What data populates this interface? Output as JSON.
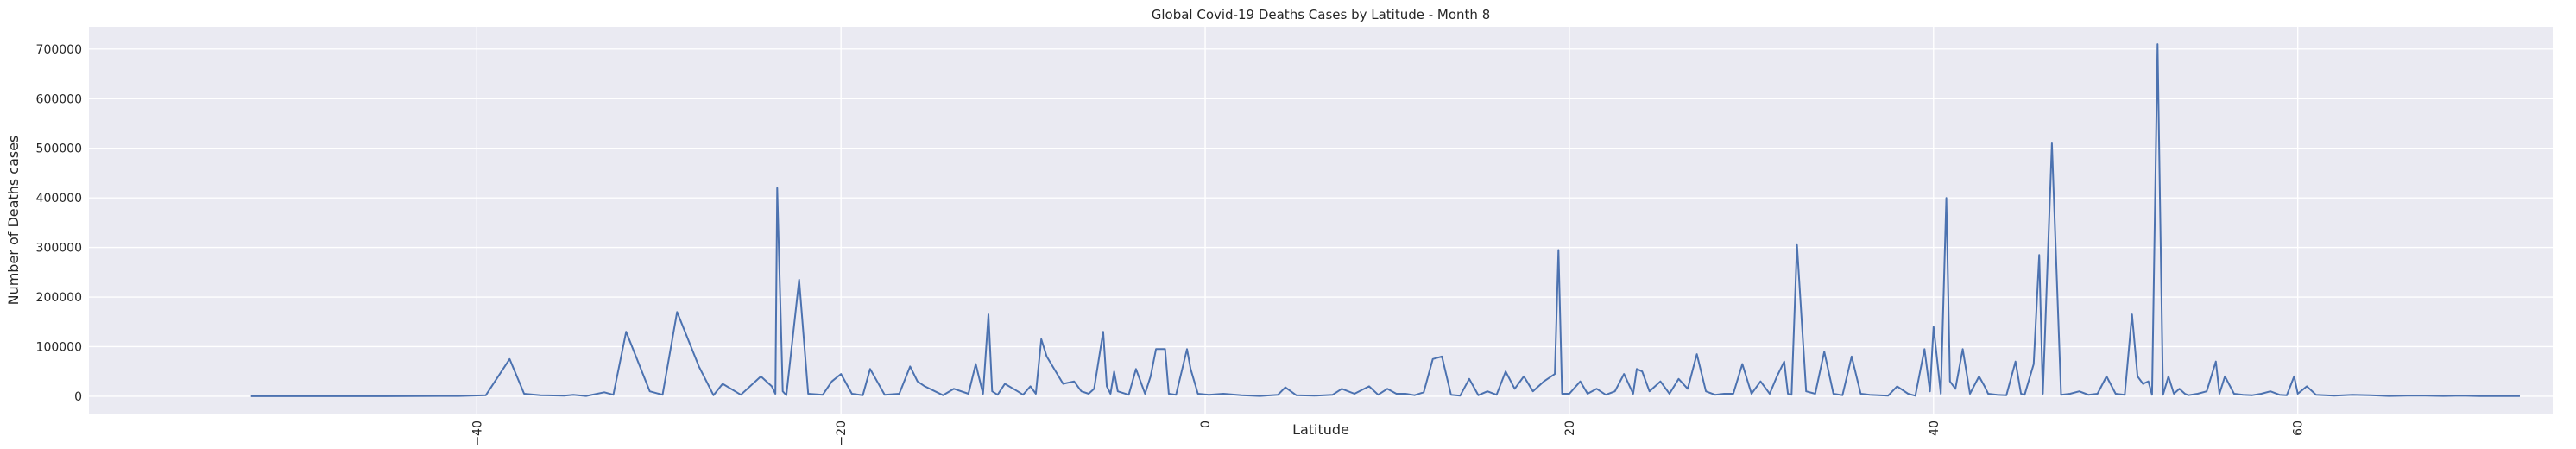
{
  "chart_data": {
    "type": "line",
    "title": "Global Covid-19 Deaths Cases by Latitude - Month 8",
    "xlabel": "Latitude",
    "ylabel": "Number of Deaths cases",
    "xlim": [
      -61.3,
      74
    ],
    "ylim": [
      -35000,
      745000
    ],
    "x_ticks": [
      -40,
      -20,
      0,
      20,
      40,
      60
    ],
    "y_ticks": [
      0,
      100000,
      200000,
      300000,
      400000,
      500000,
      600000,
      700000
    ],
    "grid": true,
    "series": [
      {
        "color": "#4c72b0",
        "x": [
          -52.4,
          -49,
          -45,
          -41,
          -39.5,
          -38.2,
          -37.4,
          -36.5,
          -35.2,
          -34.7,
          -34.0,
          -33.0,
          -32.5,
          -31.8,
          -30.5,
          -29.8,
          -29.0,
          -27.8,
          -27.0,
          -26.5,
          -25.5,
          -24.4,
          -23.8,
          -23.6,
          -23.5,
          -23.2,
          -23.0,
          -22.3,
          -21.8,
          -21.0,
          -20.5,
          -20.0,
          -19.4,
          -18.8,
          -18.4,
          -17.6,
          -16.8,
          -16.2,
          -15.8,
          -15.4,
          -14.4,
          -13.8,
          -13.0,
          -12.6,
          -12.2,
          -11.9,
          -11.7,
          -11.4,
          -11.0,
          -10.3,
          -10.0,
          -9.6,
          -9.3,
          -9.0,
          -8.7,
          -7.8,
          -7.2,
          -6.8,
          -6.4,
          -6.1,
          -5.6,
          -5.4,
          -5.2,
          -5.0,
          -4.8,
          -4.2,
          -3.8,
          -3.3,
          -3.0,
          -2.7,
          -2.2,
          -2.0,
          -1.6,
          -1.0,
          -0.8,
          -0.4,
          0.2,
          1.0,
          2.0,
          3.0,
          4.0,
          4.4,
          5.0,
          6.0,
          7.0,
          7.5,
          8.2,
          9.0,
          9.5,
          10.0,
          10.5,
          11.0,
          11.5,
          12.0,
          12.5,
          13.0,
          13.5,
          14.0,
          14.5,
          15.0,
          15.5,
          16.0,
          16.5,
          17.0,
          17.5,
          18.0,
          18.6,
          19.2,
          19.4,
          19.6,
          20.0,
          20.6,
          21.0,
          21.5,
          22.0,
          22.5,
          23.0,
          23.5,
          23.7,
          24.0,
          24.4,
          25.0,
          25.5,
          26.0,
          26.5,
          27.0,
          27.5,
          28.0,
          28.5,
          29.0,
          29.5,
          30.0,
          30.5,
          31.0,
          31.4,
          31.8,
          32.0,
          32.2,
          32.5,
          33.0,
          33.5,
          34.0,
          34.5,
          35.0,
          35.5,
          36.0,
          36.5,
          37.0,
          37.5,
          38.0,
          38.6,
          39.0,
          39.5,
          39.8,
          40.0,
          40.4,
          40.7,
          40.9,
          41.2,
          41.6,
          41.8,
          42.0,
          42.5,
          42.8,
          43.0,
          43.5,
          44.0,
          44.5,
          44.8,
          45.0,
          45.5,
          45.8,
          46.0,
          46.5,
          47.0,
          47.5,
          48.0,
          48.5,
          49.0,
          49.5,
          50.0,
          50.5,
          50.9,
          51.2,
          51.5,
          51.8,
          52.0,
          52.3,
          52.6,
          52.9,
          53.2,
          53.5,
          53.8,
          54.0,
          54.5,
          55.0,
          55.5,
          55.7,
          56.0,
          56.5,
          57.0,
          57.5,
          58.0,
          58.5,
          59.0,
          59.4,
          59.8,
          60.0,
          60.5,
          61.0,
          62.0,
          63.0,
          64.0,
          65.0,
          66.0,
          67.0,
          68.0,
          69.0,
          70.0,
          71.0,
          72.0,
          72.2
        ],
        "values": [
          0,
          0,
          0,
          500,
          2000,
          75000,
          5000,
          2000,
          1000,
          3000,
          500,
          8000,
          3000,
          130000,
          10000,
          3000,
          170000,
          60000,
          2000,
          25000,
          3000,
          40000,
          20000,
          5000,
          420000,
          10000,
          2000,
          235000,
          5000,
          3000,
          30000,
          45000,
          5000,
          2000,
          55000,
          3000,
          5000,
          60000,
          30000,
          20000,
          2000,
          15000,
          5000,
          65000,
          5000,
          165000,
          10000,
          3000,
          25000,
          10000,
          3000,
          20000,
          5000,
          115000,
          80000,
          25000,
          30000,
          10000,
          5000,
          15000,
          130000,
          20000,
          5000,
          50000,
          10000,
          3000,
          55000,
          5000,
          40000,
          95000,
          95000,
          5000,
          3000,
          95000,
          55000,
          5000,
          3000,
          5000,
          2000,
          500,
          3000,
          18000,
          2000,
          1000,
          3000,
          15000,
          5000,
          20000,
          3000,
          15000,
          5000,
          5000,
          2000,
          8000,
          75000,
          80000,
          3000,
          1000,
          35000,
          2000,
          10000,
          3000,
          50000,
          15000,
          40000,
          10000,
          30000,
          45000,
          295000,
          5000,
          5000,
          30000,
          5000,
          15000,
          3000,
          10000,
          45000,
          5000,
          55000,
          50000,
          10000,
          30000,
          5000,
          35000,
          15000,
          85000,
          10000,
          3000,
          5000,
          5000,
          65000,
          5000,
          30000,
          5000,
          40000,
          70000,
          5000,
          3000,
          305000,
          10000,
          5000,
          90000,
          5000,
          2000,
          80000,
          5000,
          3000,
          2000,
          1000,
          20000,
          5000,
          1000,
          95000,
          10000,
          140000,
          5000,
          400000,
          30000,
          15000,
          95000,
          50000,
          5000,
          40000,
          20000,
          5000,
          3000,
          2000,
          70000,
          5000,
          3000,
          65000,
          285000,
          5000,
          510000,
          3000,
          5000,
          10000,
          3000,
          5000,
          40000,
          5000,
          3000,
          165000,
          40000,
          25000,
          30000,
          3000,
          710000,
          3000,
          40000,
          5000,
          15000,
          5000,
          2000,
          5000,
          10000,
          70000,
          5000,
          40000,
          5000,
          3000,
          2000,
          5000,
          10000,
          3000,
          2000,
          40000,
          5000,
          20000,
          3000,
          1000,
          3000,
          2000,
          500,
          1000,
          1000,
          500,
          1000,
          200,
          100,
          500,
          100
        ]
      }
    ]
  }
}
